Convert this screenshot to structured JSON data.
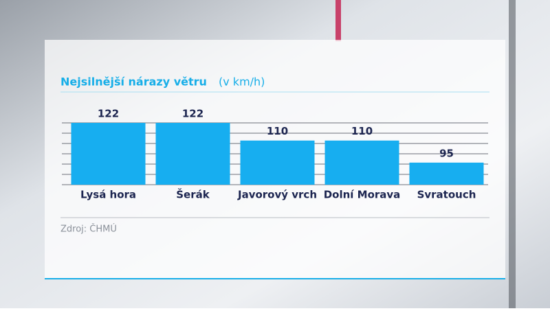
{
  "chart_data": {
    "type": "bar",
    "title": "Nejsilnější nárazy větru",
    "subtitle": "(v km/h)",
    "categories": [
      "Lysá hora",
      "Šerák",
      "Javorový vrch",
      "Dolní Morava",
      "Svratouch"
    ],
    "values": [
      122,
      122,
      110,
      110,
      95
    ],
    "color": "#17aef0",
    "ylim": [
      80,
      122
    ],
    "grid": true,
    "source": "Zdroj: ČHMÚ"
  }
}
